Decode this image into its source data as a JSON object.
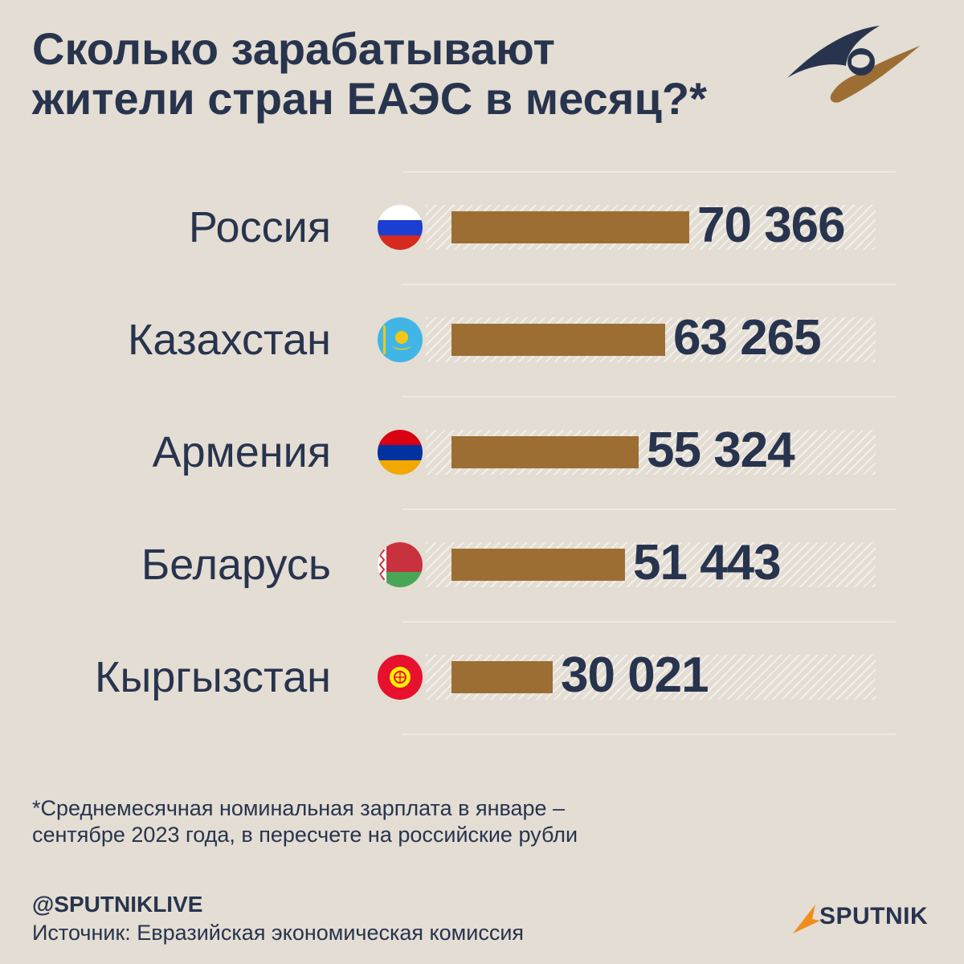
{
  "title": {
    "line1": "Сколько зарабатывают",
    "line2": "жители стран ЕАЭС в месяц?*"
  },
  "colors": {
    "bar": "#9c6e33",
    "text": "#28344e",
    "background": "#e3ddd3",
    "logo_blue": "#28344e",
    "logo_gold": "#9c6e33",
    "brand_orange": "#f28c1a"
  },
  "logo_icon": "eaeu-emblem-icon",
  "chart_data": {
    "type": "bar",
    "orientation": "horizontal",
    "categories": [
      "Россия",
      "Казахстан",
      "Армения",
      "Беларусь",
      "Кыргызстан"
    ],
    "values": [
      70366,
      63265,
      55324,
      51443,
      30021
    ],
    "value_labels": [
      "70 366",
      "63 265",
      "55 324",
      "51 443",
      "30 021"
    ],
    "flags": [
      "russia-flag-icon",
      "kazakhstan-flag-icon",
      "armenia-flag-icon",
      "belarus-flag-icon",
      "kyrgyzstan-flag-icon"
    ],
    "title": "Сколько зарабатывают жители стран ЕАЭС в месяц?*",
    "xlim": [
      0,
      100000
    ],
    "grid": false,
    "legend": "none"
  },
  "footnote": {
    "line1": "*Среднемесячная номинальная зарплата в январе –",
    "line2": "сентябре 2023 года, в пересчете на российские рубли"
  },
  "handle": "@SPUTNIKLIVE",
  "source": "Источник: Евразийская экономическая комиссия",
  "brand": "SPUTNIK"
}
